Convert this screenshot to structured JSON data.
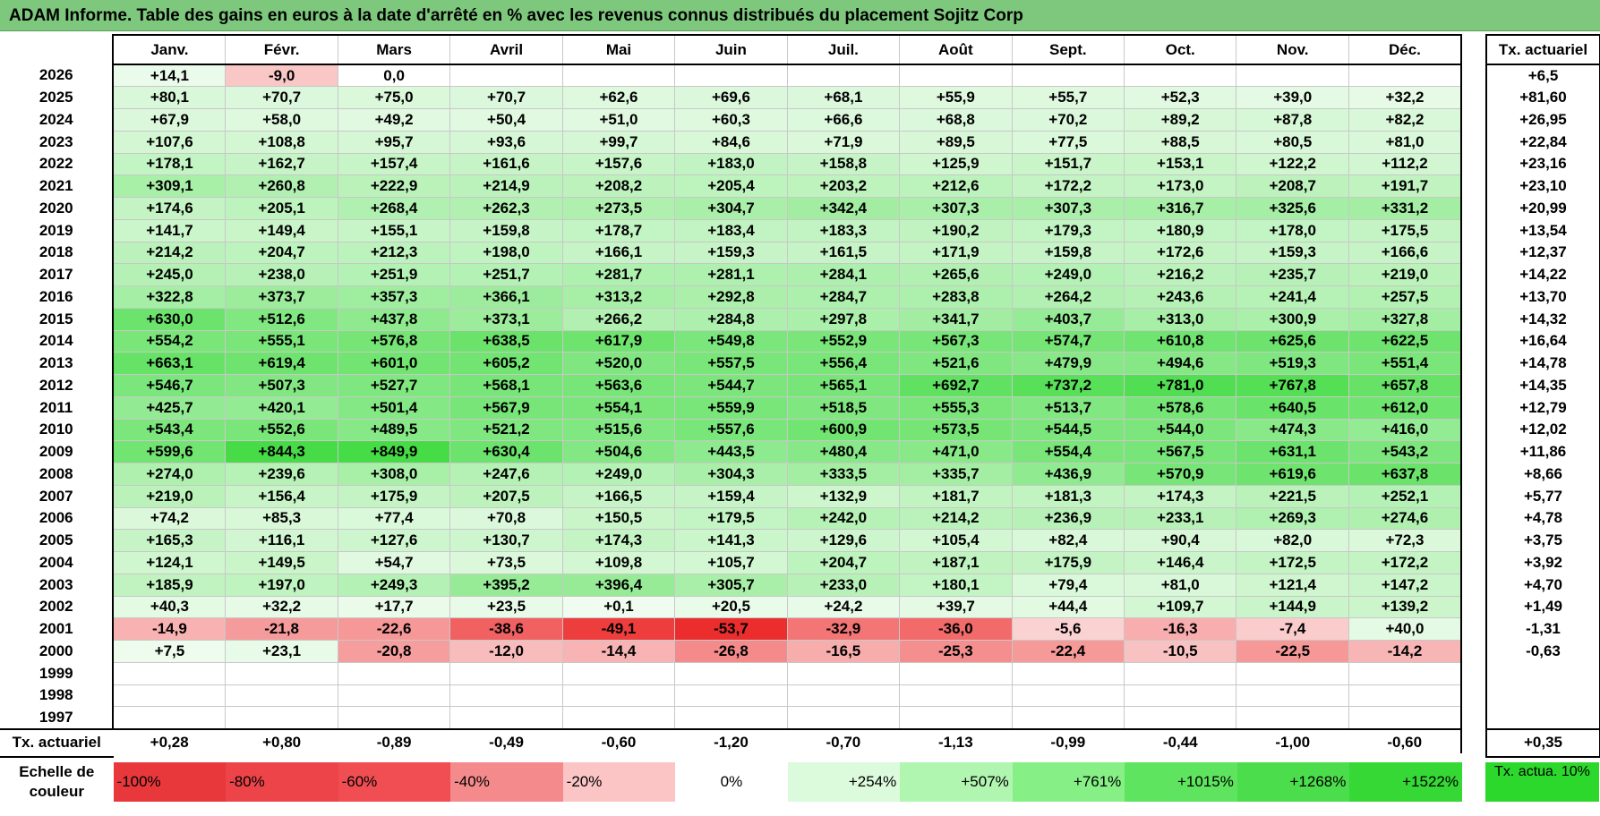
{
  "title": "ADAM Informe. Table des gains en euros à la date d'arrêté en % avec les revenus connus distribués du placement Sojitz Corp",
  "months": [
    "Janv.",
    "Févr.",
    "Mars",
    "Avril",
    "Mai",
    "Juin",
    "Juil.",
    "Août",
    "Sept.",
    "Oct.",
    "Nov.",
    "Déc."
  ],
  "rate_header": "Tx. actuariel",
  "rows": [
    {
      "year": "2026",
      "values": [
        "+14,1",
        "-9,0",
        "0,0",
        "",
        "",
        "",
        "",
        "",
        "",
        "",
        "",
        ""
      ],
      "rate": "+6,5"
    },
    {
      "year": "2025",
      "values": [
        "+80,1",
        "+70,7",
        "+75,0",
        "+70,7",
        "+62,6",
        "+69,6",
        "+68,1",
        "+55,9",
        "+55,7",
        "+52,3",
        "+39,0",
        "+32,2"
      ],
      "rate": "+81,60"
    },
    {
      "year": "2024",
      "values": [
        "+67,9",
        "+58,0",
        "+49,2",
        "+50,4",
        "+51,0",
        "+60,3",
        "+66,6",
        "+68,8",
        "+70,2",
        "+89,2",
        "+87,8",
        "+82,2"
      ],
      "rate": "+26,95"
    },
    {
      "year": "2023",
      "values": [
        "+107,6",
        "+108,8",
        "+95,7",
        "+93,6",
        "+99,7",
        "+84,6",
        "+71,9",
        "+89,5",
        "+77,5",
        "+88,5",
        "+80,5",
        "+81,0"
      ],
      "rate": "+22,84"
    },
    {
      "year": "2022",
      "values": [
        "+178,1",
        "+162,7",
        "+157,4",
        "+161,6",
        "+157,6",
        "+183,0",
        "+158,8",
        "+125,9",
        "+151,7",
        "+153,1",
        "+122,2",
        "+112,2"
      ],
      "rate": "+23,16"
    },
    {
      "year": "2021",
      "values": [
        "+309,1",
        "+260,8",
        "+222,9",
        "+214,9",
        "+208,2",
        "+205,4",
        "+203,2",
        "+212,6",
        "+172,2",
        "+173,0",
        "+208,7",
        "+191,7"
      ],
      "rate": "+23,10"
    },
    {
      "year": "2020",
      "values": [
        "+174,6",
        "+205,1",
        "+268,4",
        "+262,3",
        "+273,5",
        "+304,7",
        "+342,4",
        "+307,3",
        "+307,3",
        "+316,7",
        "+325,6",
        "+331,2"
      ],
      "rate": "+20,99"
    },
    {
      "year": "2019",
      "values": [
        "+141,7",
        "+149,4",
        "+155,1",
        "+159,8",
        "+178,7",
        "+183,4",
        "+183,3",
        "+190,2",
        "+179,3",
        "+180,9",
        "+178,0",
        "+175,5"
      ],
      "rate": "+13,54"
    },
    {
      "year": "2018",
      "values": [
        "+214,2",
        "+204,7",
        "+212,3",
        "+198,0",
        "+166,1",
        "+159,3",
        "+161,5",
        "+171,9",
        "+159,8",
        "+172,6",
        "+159,3",
        "+166,6"
      ],
      "rate": "+12,37"
    },
    {
      "year": "2017",
      "values": [
        "+245,0",
        "+238,0",
        "+251,9",
        "+251,7",
        "+281,7",
        "+281,1",
        "+284,1",
        "+265,6",
        "+249,0",
        "+216,2",
        "+235,7",
        "+219,0"
      ],
      "rate": "+14,22"
    },
    {
      "year": "2016",
      "values": [
        "+322,8",
        "+373,7",
        "+357,3",
        "+366,1",
        "+313,2",
        "+292,8",
        "+284,7",
        "+283,8",
        "+264,2",
        "+243,6",
        "+241,4",
        "+257,5"
      ],
      "rate": "+13,70"
    },
    {
      "year": "2015",
      "values": [
        "+630,0",
        "+512,6",
        "+437,8",
        "+373,1",
        "+266,2",
        "+284,8",
        "+297,8",
        "+341,7",
        "+403,7",
        "+313,0",
        "+300,9",
        "+327,8"
      ],
      "rate": "+14,32"
    },
    {
      "year": "2014",
      "values": [
        "+554,2",
        "+555,1",
        "+576,8",
        "+638,5",
        "+617,9",
        "+549,8",
        "+552,9",
        "+567,3",
        "+574,7",
        "+610,8",
        "+625,6",
        "+622,5"
      ],
      "rate": "+16,64"
    },
    {
      "year": "2013",
      "values": [
        "+663,1",
        "+619,4",
        "+601,0",
        "+605,2",
        "+520,0",
        "+557,5",
        "+556,4",
        "+521,6",
        "+479,9",
        "+494,6",
        "+519,3",
        "+551,4"
      ],
      "rate": "+14,78"
    },
    {
      "year": "2012",
      "values": [
        "+546,7",
        "+507,3",
        "+527,7",
        "+568,1",
        "+563,6",
        "+544,7",
        "+565,1",
        "+692,7",
        "+737,2",
        "+781,0",
        "+767,8",
        "+657,8"
      ],
      "rate": "+14,35"
    },
    {
      "year": "2011",
      "values": [
        "+425,7",
        "+420,1",
        "+501,4",
        "+567,9",
        "+554,1",
        "+559,9",
        "+518,5",
        "+555,3",
        "+513,7",
        "+578,6",
        "+640,5",
        "+612,0"
      ],
      "rate": "+12,79"
    },
    {
      "year": "2010",
      "values": [
        "+543,4",
        "+552,6",
        "+489,5",
        "+521,2",
        "+515,6",
        "+557,6",
        "+600,9",
        "+573,5",
        "+544,5",
        "+544,0",
        "+474,3",
        "+416,0"
      ],
      "rate": "+12,02"
    },
    {
      "year": "2009",
      "values": [
        "+599,6",
        "+844,3",
        "+849,9",
        "+630,4",
        "+504,6",
        "+443,5",
        "+480,4",
        "+471,0",
        "+554,4",
        "+567,5",
        "+631,1",
        "+543,2"
      ],
      "rate": "+11,86"
    },
    {
      "year": "2008",
      "values": [
        "+274,0",
        "+239,6",
        "+308,0",
        "+247,6",
        "+249,0",
        "+304,3",
        "+333,5",
        "+335,7",
        "+436,9",
        "+570,9",
        "+619,6",
        "+637,8"
      ],
      "rate": "+8,66"
    },
    {
      "year": "2007",
      "values": [
        "+219,0",
        "+156,4",
        "+175,9",
        "+207,5",
        "+166,5",
        "+159,4",
        "+132,9",
        "+181,7",
        "+181,3",
        "+174,3",
        "+221,5",
        "+252,1"
      ],
      "rate": "+5,77"
    },
    {
      "year": "2006",
      "values": [
        "+74,2",
        "+85,3",
        "+77,4",
        "+70,8",
        "+150,5",
        "+179,5",
        "+242,0",
        "+214,2",
        "+236,9",
        "+233,1",
        "+269,3",
        "+274,6"
      ],
      "rate": "+4,78"
    },
    {
      "year": "2005",
      "values": [
        "+165,3",
        "+116,1",
        "+127,6",
        "+130,7",
        "+174,3",
        "+141,3",
        "+129,6",
        "+105,4",
        "+82,4",
        "+90,4",
        "+82,0",
        "+72,3"
      ],
      "rate": "+3,75"
    },
    {
      "year": "2004",
      "values": [
        "+124,1",
        "+149,5",
        "+54,7",
        "+73,5",
        "+109,8",
        "+105,7",
        "+204,7",
        "+187,1",
        "+175,9",
        "+146,4",
        "+172,5",
        "+172,2"
      ],
      "rate": "+3,92"
    },
    {
      "year": "2003",
      "values": [
        "+185,9",
        "+197,0",
        "+249,3",
        "+395,2",
        "+396,4",
        "+305,7",
        "+233,0",
        "+180,1",
        "+79,4",
        "+81,0",
        "+121,4",
        "+147,2"
      ],
      "rate": "+4,70"
    },
    {
      "year": "2002",
      "values": [
        "+40,3",
        "+32,2",
        "+17,7",
        "+23,5",
        "+0,1",
        "+20,5",
        "+24,2",
        "+39,7",
        "+44,4",
        "+109,7",
        "+144,9",
        "+139,2"
      ],
      "rate": "+1,49"
    },
    {
      "year": "2001",
      "values": [
        "-14,9",
        "-21,8",
        "-22,6",
        "-38,6",
        "-49,1",
        "-53,7",
        "-32,9",
        "-36,0",
        "-5,6",
        "-16,3",
        "-7,4",
        "+40,0"
      ],
      "rate": "-1,31"
    },
    {
      "year": "2000",
      "values": [
        "+7,5",
        "+23,1",
        "-20,8",
        "-12,0",
        "-14,4",
        "-26,8",
        "-16,5",
        "-25,3",
        "-22,4",
        "-10,5",
        "-22,5",
        "-14,2"
      ],
      "rate": "-0,63"
    },
    {
      "year": "1999",
      "values": [
        "",
        "",
        "",
        "",
        "",
        "",
        "",
        "",
        "",
        "",
        "",
        ""
      ],
      "rate": ""
    },
    {
      "year": "1998",
      "values": [
        "",
        "",
        "",
        "",
        "",
        "",
        "",
        "",
        "",
        "",
        "",
        ""
      ],
      "rate": ""
    },
    {
      "year": "1997",
      "values": [
        "",
        "",
        "",
        "",
        "",
        "",
        "",
        "",
        "",
        "",
        "",
        ""
      ],
      "rate": ""
    }
  ],
  "monthly_rate": {
    "label": "Tx. actuariel",
    "values": [
      "+0,28",
      "+0,80",
      "-0,89",
      "-0,49",
      "-0,60",
      "-1,20",
      "-0,70",
      "-1,13",
      "-0,99",
      "-0,44",
      "-1,00",
      "-0,60"
    ],
    "total": "+0,35"
  },
  "legend": {
    "label": "Echelle de couleur",
    "items": [
      {
        "text": "-100%",
        "color": "#e8383c"
      },
      {
        "text": "-80%",
        "color": "#ec4448"
      },
      {
        "text": "-60%",
        "color": "#f04e52"
      },
      {
        "text": "-40%",
        "color": "#f58a8c"
      },
      {
        "text": "-20%",
        "color": "#fbc4c5"
      },
      {
        "text": "0%",
        "color": "#ffffff"
      },
      {
        "text": "+254%",
        "color": "#dcfadc"
      },
      {
        "text": "+507%",
        "color": "#b0f5b0"
      },
      {
        "text": "+761%",
        "color": "#86f086"
      },
      {
        "text": "+1015%",
        "color": "#5ee45e"
      },
      {
        "text": "+1268%",
        "color": "#4cdd4c"
      },
      {
        "text": "+1522%",
        "color": "#36d836"
      }
    ],
    "side": {
      "text": "Tx. actua. 10%",
      "color": "#2bd82b"
    }
  },
  "colors": {
    "title_bar": "#7ec87e",
    "positive_scale_max": "#46dc46",
    "negative_scale_max": "#ec2c2c"
  }
}
